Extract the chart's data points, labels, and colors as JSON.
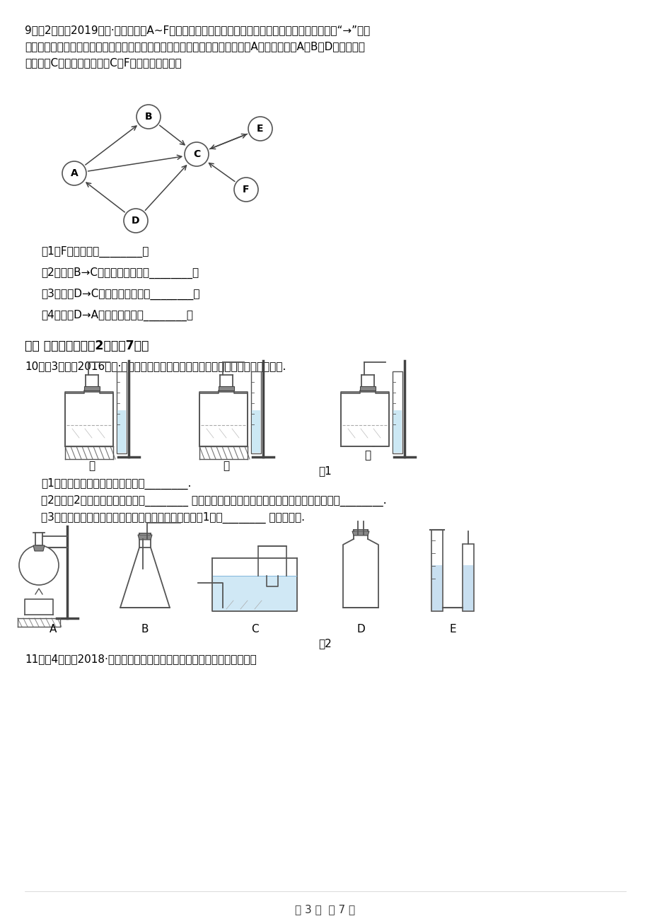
{
  "page_bg": "#ffffff",
  "text_color": "#000000",
  "page_width": 9.2,
  "page_height": 13.02,
  "dpi": 100,
  "q9_header": "9．（2分）（2019九上·揭东月考）A~F均为初中化学常见的物质，它们之间的转化关系如图所示（“→”表示",
  "q9_line2": "一种物质可以转化为另一种物质，部分反应物、生成物及反应条件省略），其中A俗称生石灰，A、B、D有相同的金",
  "q9_line3": "属元素，C是最常用的溶剂，C与F的组成元素相同。",
  "q9_sub1": "（1）F的化学式是________；",
  "q9_sub2": "（2）反应B→C的化学方程式为：________；",
  "q9_sub3": "（3）反应D→C的化学方程式为：________；",
  "q9_sub4": "（4）反应D→A的化学方程式为________。",
  "section3_header": "三、 实验探究题（兲2题；兲7分）",
  "q10_header": "10．（3分）（2016九下·东营开学考）回答实验室用高锅酸钒制取氧气的相关问题.",
  "q10_fig1_label": "图1",
  "q10_labels_fig1": [
    "甲",
    "乙",
    "丙"
  ],
  "q10_q1": "（1）写出制取原理的化学方程式：________.",
  "q10_q2": "（2）如图2所示，发生装置应选用________ （填编号，下同），以下气体收集装置不能采用的是________.",
  "q10_q3": "（3）为测定高锅酸钒分解生成氧气的体积，应选用如图1装置________ （填编号）.",
  "q10_fig2_label": "图2",
  "q10_fig2_labels": [
    "A",
    "B",
    "C",
    "D",
    "E"
  ],
  "q11_header": "11．（4分）（2018·合肥模拟）下图是实验室制取气体可能用到的装置。",
  "page_footer": "第 3 页  共 7 页"
}
